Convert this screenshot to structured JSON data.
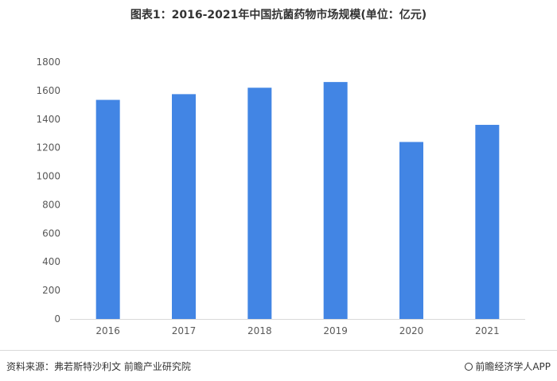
{
  "chart_data": {
    "type": "bar",
    "title": "图表1：2016-2021年中国抗菌药物市场规模(单位：亿元)",
    "categories": [
      "2016",
      "2017",
      "2018",
      "2019",
      "2020",
      "2021"
    ],
    "values": [
      1535,
      1575,
      1620,
      1660,
      1240,
      1360
    ],
    "ylim": [
      0,
      1800
    ],
    "yticks": [
      0,
      200,
      400,
      600,
      800,
      1000,
      1200,
      1400,
      1600,
      1800
    ],
    "bar_color": "#4285e4",
    "grid": false,
    "legend": "none"
  },
  "footer": {
    "source": "资料来源：弗若斯特沙利文 前瞻产业研究院",
    "brand": "前瞻经济学人APP"
  }
}
